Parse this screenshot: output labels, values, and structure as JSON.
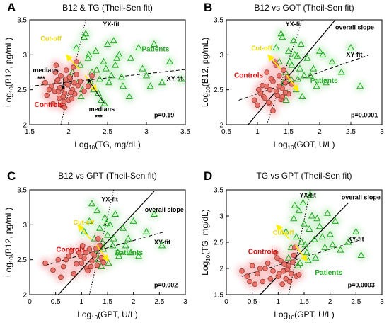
{
  "colors": {
    "control_fill": "#e8736d",
    "control_stroke": "#9a3a2a",
    "control_cloud": "#f7b6b8",
    "patient_stroke": "#22aa22",
    "patient_cloud": "#c8f0c8",
    "cutoff": "#ffee00",
    "axis": "#000000",
    "label_controls": "#d01010",
    "label_patients": "#22aa22",
    "label_cutoff": "#e8d400"
  },
  "chart_data": [
    {
      "type": "scatter",
      "panel_letter": "A",
      "title": "B12 & TG (Theil-Sen fit)",
      "xlabel_main": "Log",
      "xlabel_sub": "10",
      "xlabel_rest": "(TG, mg/dL)",
      "ylabel_main": "Log",
      "ylabel_sub": "10",
      "ylabel_rest": "(B12, pg/mL)",
      "xlim": [
        1.5,
        3.5
      ],
      "ylim": [
        2.0,
        3.5
      ],
      "xticks": [
        "1.5",
        "2",
        "2.5",
        "3",
        "3.5"
      ],
      "yticks": [
        "2",
        "2.5",
        "3",
        "3.5"
      ],
      "p_value": "p=0.19",
      "labels": {
        "controls": "Controls",
        "patients": "Patients",
        "cutoff": "Cut-off",
        "yx": "YX-fit",
        "xy": "XY-fit",
        "medians1": "medians",
        "stars1": "***",
        "medians2": "medians",
        "stars2": "***"
      },
      "lines": {
        "xy": [
          [
            1.5,
            2.55
          ],
          [
            3.5,
            2.79
          ]
        ],
        "yx": [
          [
            1.9,
            2.0
          ],
          [
            2.22,
            3.5
          ]
        ]
      },
      "controls": {
        "x": [
          1.72,
          1.78,
          1.82,
          1.85,
          1.88,
          1.9,
          1.92,
          1.95,
          1.98,
          2.0,
          2.02,
          2.05,
          2.08,
          2.1,
          2.12,
          1.8,
          1.86,
          1.93,
          1.97,
          2.03,
          2.07,
          1.75,
          1.89,
          1.94,
          2.01,
          2.15,
          2.2,
          1.83,
          1.91,
          1.99,
          2.06,
          1.87,
          1.96,
          2.04,
          2.25,
          1.7,
          2.3,
          1.95,
          2.1,
          1.84
        ],
        "y": [
          2.42,
          2.55,
          2.48,
          2.62,
          2.38,
          2.7,
          2.52,
          2.45,
          2.58,
          2.35,
          2.66,
          2.5,
          2.44,
          2.72,
          2.56,
          2.3,
          2.64,
          2.4,
          2.78,
          2.46,
          2.6,
          2.5,
          2.53,
          2.33,
          2.68,
          2.62,
          2.48,
          2.75,
          2.28,
          2.57,
          2.82,
          2.47,
          2.65,
          2.37,
          2.55,
          2.6,
          2.7,
          2.25,
          2.9,
          2.85
        ]
      },
      "patients": {
        "x": [
          2.1,
          2.15,
          2.2,
          2.25,
          2.3,
          2.35,
          2.4,
          2.45,
          2.5,
          2.55,
          2.6,
          2.65,
          2.7,
          2.8,
          2.9,
          3.0,
          3.1,
          3.2,
          3.3,
          3.45,
          2.05,
          2.12,
          2.18,
          2.28,
          2.38,
          2.48,
          2.58,
          2.68,
          2.78,
          2.95,
          3.05,
          2.22,
          2.32,
          2.42,
          2.52,
          2.62,
          2.16,
          2.26,
          2.36,
          2.46
        ],
        "y": [
          3.1,
          2.85,
          3.25,
          2.95,
          2.75,
          3.05,
          2.65,
          2.9,
          3.15,
          2.7,
          2.85,
          3.0,
          2.55,
          2.95,
          3.1,
          2.7,
          3.15,
          2.6,
          2.9,
          2.65,
          2.75,
          2.6,
          2.5,
          2.62,
          2.45,
          2.8,
          3.2,
          2.68,
          2.4,
          2.8,
          2.55,
          3.3,
          2.5,
          2.35,
          2.6,
          2.95,
          2.4,
          3.0,
          2.78,
          2.3
        ]
      }
    },
    {
      "type": "scatter",
      "panel_letter": "B",
      "title": "B12 vs GOT (Theil-Sen fit)",
      "xlabel_main": "Log",
      "xlabel_sub": "10",
      "xlabel_rest": "(GOT, U/L)",
      "ylabel_main": "Log",
      "ylabel_sub": "10",
      "ylabel_rest": "(B12, pg/mL)",
      "xlim": [
        0.5,
        3.0
      ],
      "ylim": [
        2.0,
        3.5
      ],
      "xticks": [
        "0.5",
        "1",
        "1.5",
        "2",
        "2.5",
        "3"
      ],
      "yticks": [
        "2",
        "2.5",
        "3",
        "3.5"
      ],
      "p_value": "p=0.0001",
      "labels": {
        "controls": "Controls",
        "patients": "Patients",
        "cutoff": "Cut-off",
        "yx": "YX-fit",
        "xy": "XY-fit",
        "overall": "overall slope"
      },
      "lines": {
        "xy": [
          [
            0.7,
            2.35
          ],
          [
            2.8,
            3.0
          ]
        ],
        "yx": [
          [
            1.15,
            2.0
          ],
          [
            1.72,
            3.5
          ]
        ],
        "overall": [
          [
            0.85,
            2.0
          ],
          [
            2.25,
            3.5
          ]
        ]
      },
      "controls": {
        "x": [
          0.95,
          1.0,
          1.05,
          1.1,
          1.15,
          1.2,
          1.25,
          1.3,
          1.35,
          1.4,
          1.45,
          1.5,
          1.55,
          1.02,
          1.12,
          1.22,
          1.32,
          1.42,
          1.08,
          1.18,
          1.28,
          1.38,
          1.48,
          1.25,
          1.35,
          1.45,
          1.15,
          1.3,
          1.4,
          1.2
        ],
        "y": [
          2.35,
          2.28,
          2.45,
          2.4,
          2.55,
          2.3,
          2.62,
          2.48,
          2.7,
          2.52,
          2.6,
          2.44,
          2.58,
          2.5,
          2.38,
          2.66,
          2.42,
          2.78,
          2.56,
          2.32,
          2.9,
          2.36,
          2.68,
          2.2,
          2.55,
          2.46,
          2.75,
          2.85,
          2.4,
          2.5
        ]
      },
      "patients": {
        "x": [
          1.3,
          1.35,
          1.4,
          1.45,
          1.5,
          1.55,
          1.6,
          1.65,
          1.7,
          1.75,
          1.8,
          1.9,
          2.0,
          2.1,
          2.2,
          2.35,
          2.5,
          2.65,
          1.42,
          1.48,
          1.52,
          1.58,
          1.62,
          1.68,
          1.72,
          1.85,
          1.95,
          2.05,
          1.38,
          1.46,
          1.54,
          1.64
        ],
        "y": [
          3.1,
          2.9,
          3.25,
          2.75,
          3.05,
          2.85,
          3.0,
          2.65,
          3.15,
          2.7,
          2.95,
          2.8,
          3.05,
          2.6,
          2.9,
          2.75,
          3.1,
          2.55,
          2.6,
          2.45,
          2.9,
          3.2,
          2.5,
          2.8,
          2.4,
          2.7,
          2.55,
          3.0,
          3.3,
          2.35,
          2.65,
          2.98
        ]
      }
    },
    {
      "type": "scatter",
      "panel_letter": "C",
      "title": "B12 vs GPT (Theil-Sen fit)",
      "xlabel_main": "Log",
      "xlabel_sub": "10",
      "xlabel_rest": "(GPT, U/L)",
      "ylabel_main": "Log",
      "ylabel_sub": "10",
      "ylabel_rest": "(B12, pg/mL)",
      "xlim": [
        0.0,
        3.0
      ],
      "ylim": [
        2.0,
        3.5
      ],
      "xticks": [
        "0",
        "0.5",
        "1",
        "1.5",
        "2",
        "2.5",
        "3"
      ],
      "yticks": [
        "2",
        "2.5",
        "3",
        "3.5"
      ],
      "p_value": "p=0.002",
      "labels": {
        "controls": "Controls",
        "patients": "Patients",
        "cutoff": "Cut-off",
        "yx": "YX-fit",
        "xy": "XY-fit",
        "overall": "overall slope"
      },
      "lines": {
        "xy": [
          [
            0.3,
            2.42
          ],
          [
            2.6,
            2.9
          ]
        ],
        "yx": [
          [
            1.15,
            2.0
          ],
          [
            1.62,
            3.5
          ]
        ],
        "overall": [
          [
            0.55,
            2.0
          ],
          [
            2.4,
            3.48
          ]
        ]
      },
      "controls": {
        "x": [
          0.3,
          0.45,
          0.55,
          0.65,
          0.75,
          0.85,
          0.95,
          1.0,
          1.05,
          1.1,
          1.15,
          1.2,
          1.25,
          1.3,
          1.35,
          1.4,
          0.6,
          0.8,
          0.9,
          1.02,
          1.12,
          1.22,
          1.32,
          1.42,
          0.7,
          0.98,
          1.08,
          1.18,
          1.28,
          1.38
        ],
        "y": [
          2.45,
          2.35,
          2.5,
          2.4,
          2.55,
          2.3,
          2.6,
          2.45,
          2.52,
          2.38,
          2.65,
          2.48,
          2.56,
          2.42,
          2.7,
          2.5,
          2.25,
          2.62,
          2.44,
          2.7,
          2.34,
          2.58,
          2.8,
          2.46,
          2.5,
          2.55,
          2.6,
          2.4,
          2.66,
          2.53
        ]
      },
      "patients": {
        "x": [
          1.05,
          1.15,
          1.25,
          1.3,
          1.35,
          1.4,
          1.45,
          1.5,
          1.55,
          1.6,
          1.65,
          1.7,
          1.8,
          1.9,
          2.0,
          2.1,
          2.25,
          2.4,
          2.55,
          1.2,
          1.32,
          1.42,
          1.52,
          1.62,
          1.72,
          1.85,
          1.95,
          1.28,
          1.38,
          1.48
        ],
        "y": [
          2.9,
          3.05,
          2.8,
          3.2,
          2.95,
          2.75,
          3.1,
          2.85,
          3.0,
          2.7,
          3.15,
          2.6,
          2.95,
          2.8,
          3.05,
          2.55,
          2.9,
          3.15,
          2.7,
          3.3,
          2.5,
          2.65,
          2.45,
          2.8,
          2.55,
          2.7,
          2.6,
          2.58,
          2.4,
          3.02
        ]
      }
    },
    {
      "type": "scatter",
      "panel_letter": "D",
      "title": "TG vs GPT (Theil-Sen fit)",
      "xlabel_main": "Log",
      "xlabel_sub": "10",
      "xlabel_rest": "(GPT, U/L)",
      "ylabel_main": "Log",
      "ylabel_sub": "10",
      "ylabel_rest": "(TG, mg/dL)",
      "xlim": [
        0.0,
        3.0
      ],
      "ylim": [
        1.5,
        3.5
      ],
      "xticks": [
        "0",
        "0.5",
        "1",
        "1.5",
        "2",
        "2.5",
        "3"
      ],
      "yticks": [
        "1.5",
        "2",
        "2.5",
        "3",
        "3.5"
      ],
      "p_value": "p=0.0003",
      "labels": {
        "controls": "Controls",
        "patients": "Patients",
        "cutoff": "Cut-off",
        "yx": "YX-fit",
        "xy": "XY-fit",
        "overall": "overall slope"
      },
      "lines": {
        "xy": [
          [
            0.3,
            1.85
          ],
          [
            2.6,
            2.55
          ]
        ],
        "yx": [
          [
            1.2,
            1.5
          ],
          [
            1.62,
            3.5
          ]
        ],
        "overall": [
          [
            0.65,
            1.5
          ],
          [
            2.35,
            3.25
          ]
        ]
      },
      "controls": {
        "x": [
          0.3,
          0.4,
          0.5,
          0.6,
          0.7,
          0.8,
          0.9,
          1.0,
          1.05,
          1.1,
          1.15,
          1.2,
          1.25,
          1.3,
          1.35,
          0.55,
          0.75,
          0.85,
          0.95,
          1.02,
          1.12,
          1.22,
          1.32,
          0.65,
          0.98,
          1.08,
          1.18,
          1.28,
          1.4,
          0.45
        ],
        "y": [
          1.95,
          1.85,
          2.05,
          1.9,
          1.75,
          2.1,
          1.95,
          1.85,
          2.15,
          1.95,
          1.8,
          2.05,
          1.9,
          2.25,
          1.85,
          1.7,
          2.0,
          1.8,
          2.3,
          1.9,
          2.08,
          1.75,
          2.4,
          2.0,
          2.2,
          1.7,
          1.98,
          2.12,
          1.88,
          1.75
        ]
      },
      "patients": {
        "x": [
          1.15,
          1.25,
          1.3,
          1.35,
          1.4,
          1.45,
          1.5,
          1.55,
          1.6,
          1.65,
          1.7,
          1.8,
          1.9,
          2.0,
          2.1,
          2.2,
          2.35,
          2.5,
          2.6,
          1.2,
          1.32,
          1.42,
          1.52,
          1.62,
          1.72,
          1.85,
          1.95,
          1.38,
          1.48,
          1.58,
          1.75,
          2.05
        ],
        "y": [
          2.7,
          2.4,
          2.95,
          2.6,
          3.1,
          2.5,
          2.85,
          2.3,
          2.75,
          3.0,
          2.55,
          2.8,
          2.4,
          2.65,
          2.9,
          2.35,
          2.5,
          2.7,
          2.25,
          2.2,
          3.2,
          2.1,
          2.45,
          3.4,
          2.2,
          2.6,
          3.05,
          2.05,
          3.25,
          2.15,
          2.95,
          2.45
        ]
      }
    }
  ]
}
